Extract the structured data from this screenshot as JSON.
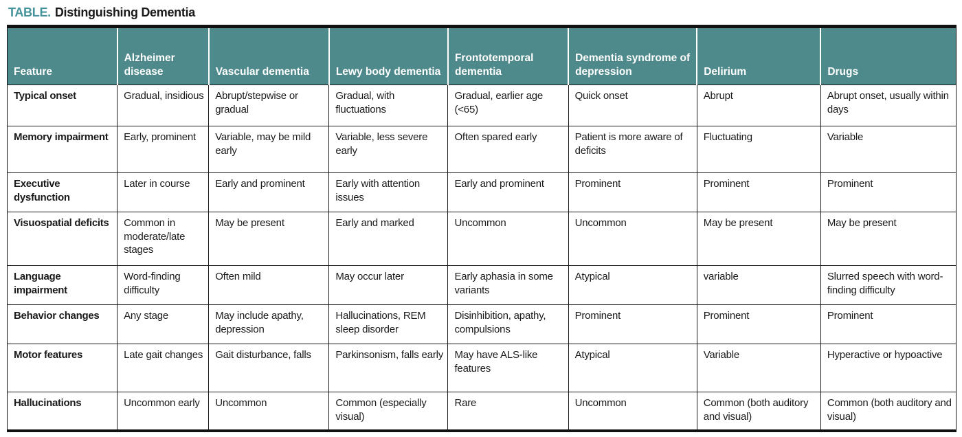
{
  "title": {
    "prefix": "TABLE.",
    "text": "Distinguishing Dementia"
  },
  "colors": {
    "accent_teal_header": "#4e898b",
    "accent_teal_title": "#45939b",
    "border_black": "#111111",
    "body_text": "#1a1a1a",
    "header_text": "#ffffff"
  },
  "table": {
    "headers": [
      "Feature",
      "Alzheimer disease",
      "Vascular dementia",
      "Lewy body dementia",
      "Frontotemporal dementia",
      "Dementia syndrome of depression",
      "Delirium",
      "Drugs"
    ],
    "rows": [
      {
        "feature": "Typical onset",
        "cells": [
          "Gradual, insidious",
          "Abrupt/stepwise or gradual",
          "Gradual, with fluctuations",
          "Gradual, earlier age (<65)",
          "Quick onset",
          "Abrupt",
          "Abrupt onset, usually within days"
        ]
      },
      {
        "feature": "Memory impairment",
        "cells": [
          "Early, prominent",
          "Variable, may be mild early",
          "Variable, less severe early",
          "Often spared early",
          "Patient is more aware of deficits",
          "Fluctuating",
          "Variable"
        ]
      },
      {
        "feature": "Executive dysfunction",
        "cells": [
          "Later in course",
          "Early and prominent",
          "Early with attention issues",
          "Early and prominent",
          "Prominent",
          "Prominent",
          "Prominent"
        ]
      },
      {
        "feature": "Visuospatial deficits",
        "cells": [
          "Common in moderate/late stages",
          "May be present",
          "Early and marked",
          "Uncommon",
          "Uncommon",
          "May be present",
          "May be present"
        ]
      },
      {
        "feature": "Language impairment",
        "cells": [
          "Word-finding difficulty",
          "Often mild",
          "May occur later",
          "Early aphasia in some variants",
          "Atypical",
          "variable",
          "Slurred speech with word-finding difficulty"
        ]
      },
      {
        "feature": "Behavior changes",
        "cells": [
          "Any stage",
          "May include apathy, depression",
          "Hallucinations, REM sleep disorder",
          "Disinhibition, apathy, compulsions",
          "Prominent",
          "Prominent",
          "Prominent"
        ]
      },
      {
        "feature": "Motor features",
        "cells": [
          "Late gait changes",
          "Gait disturbance, falls",
          "Parkinsonism, falls early",
          "May have ALS-like features",
          "Atypical",
          "Variable",
          "Hyperactive or hypoactive"
        ]
      },
      {
        "feature": "Hallucinations",
        "cells": [
          "Uncommon early",
          "Uncommon",
          "Common (especially visual)",
          "Rare",
          "Uncommon",
          "Common (both auditory and visual)",
          "Common (both auditory and visual)"
        ]
      }
    ]
  }
}
